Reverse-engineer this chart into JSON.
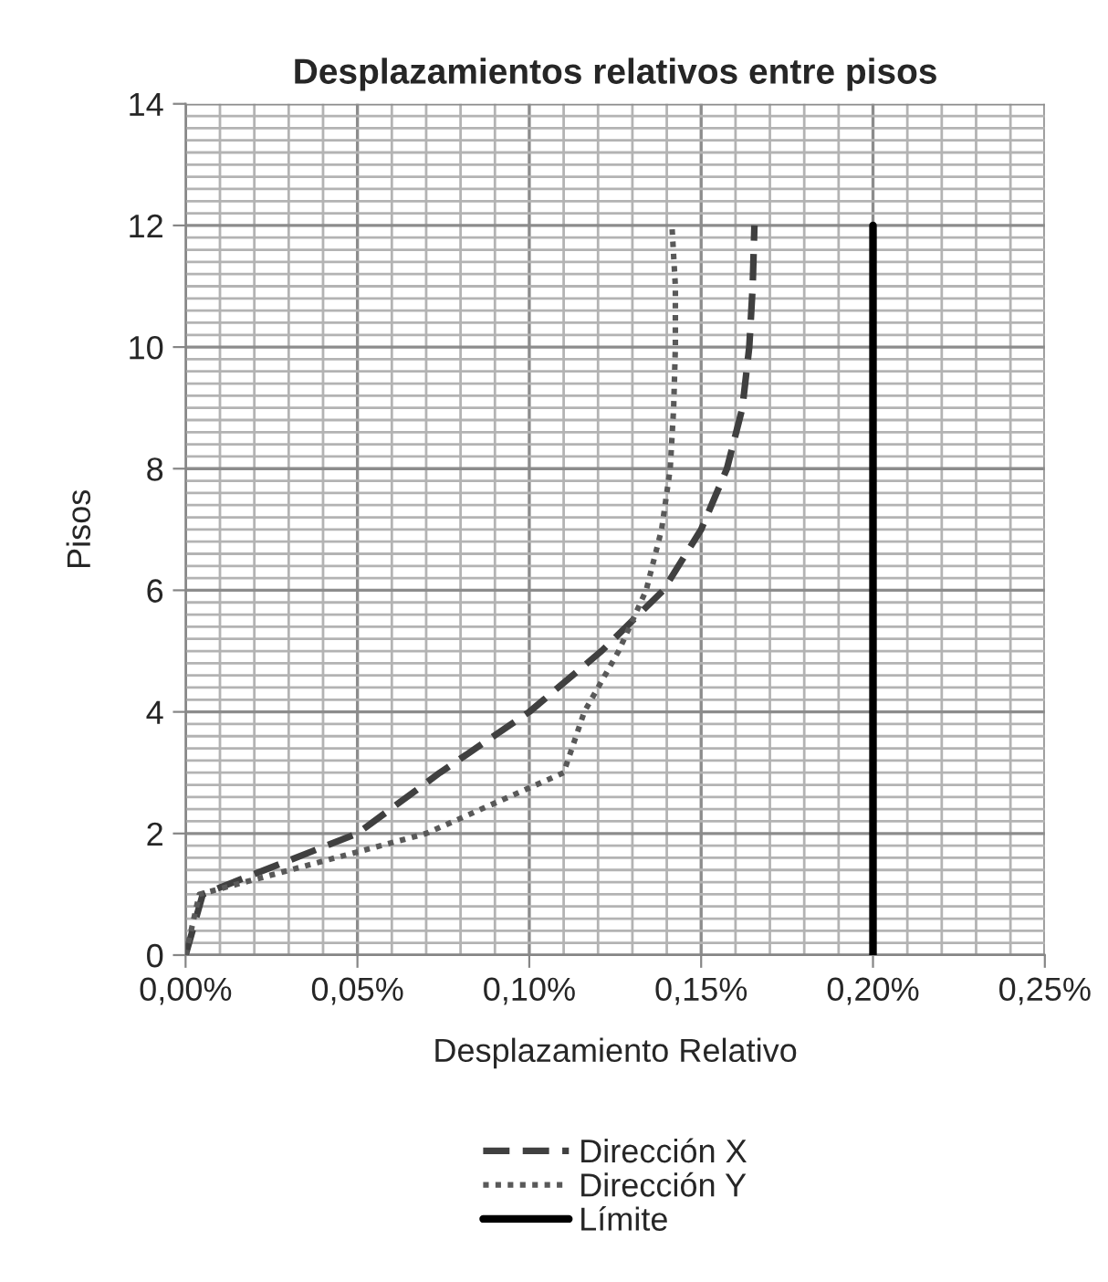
{
  "chart_data": {
    "type": "line",
    "title": "Desplazamientos relativos entre pisos",
    "xlabel": "Desplazamiento Relativo",
    "ylabel": "Pisos",
    "series": [
      {
        "name": "Dirección X",
        "color": "#404040",
        "line_style": "dashed",
        "x": [
          0,
          0.005,
          0.05,
          0.074,
          0.1,
          0.121,
          0.139,
          0.15,
          0.1575,
          0.162,
          0.164,
          0.165,
          0.1655
        ],
        "values": [
          0,
          1,
          2,
          3,
          4,
          5,
          6,
          7,
          8,
          9,
          10,
          11,
          12
        ]
      },
      {
        "name": "Dirección Y",
        "color": "#595959",
        "line_style": "dotted",
        "x": [
          0,
          0.004,
          0.07,
          0.11,
          0.116,
          0.126,
          0.134,
          0.1385,
          0.141,
          0.142,
          0.1425,
          0.1425,
          0.1415
        ],
        "values": [
          0,
          1,
          2,
          3,
          4,
          5,
          6,
          7,
          8,
          9,
          10,
          11,
          12
        ]
      },
      {
        "name": "Límite",
        "color": "#000000",
        "line_style": "solid",
        "x": [
          0.2,
          0.2
        ],
        "values": [
          0,
          12
        ]
      }
    ],
    "xlim": [
      0,
      0.25
    ],
    "xticks": [
      {
        "value": 0,
        "label": "0,00%"
      },
      {
        "value": 0.05,
        "label": "0,05%"
      },
      {
        "value": 0.1,
        "label": "0,10%"
      },
      {
        "value": 0.15,
        "label": "0,15%"
      },
      {
        "value": 0.2,
        "label": "0,20%"
      },
      {
        "value": 0.25,
        "label": "0,25%"
      }
    ],
    "ylim": [
      0,
      14
    ],
    "yticks": [
      0,
      2,
      4,
      6,
      8,
      10,
      12,
      14
    ],
    "grid": true,
    "legend": "bottom"
  }
}
